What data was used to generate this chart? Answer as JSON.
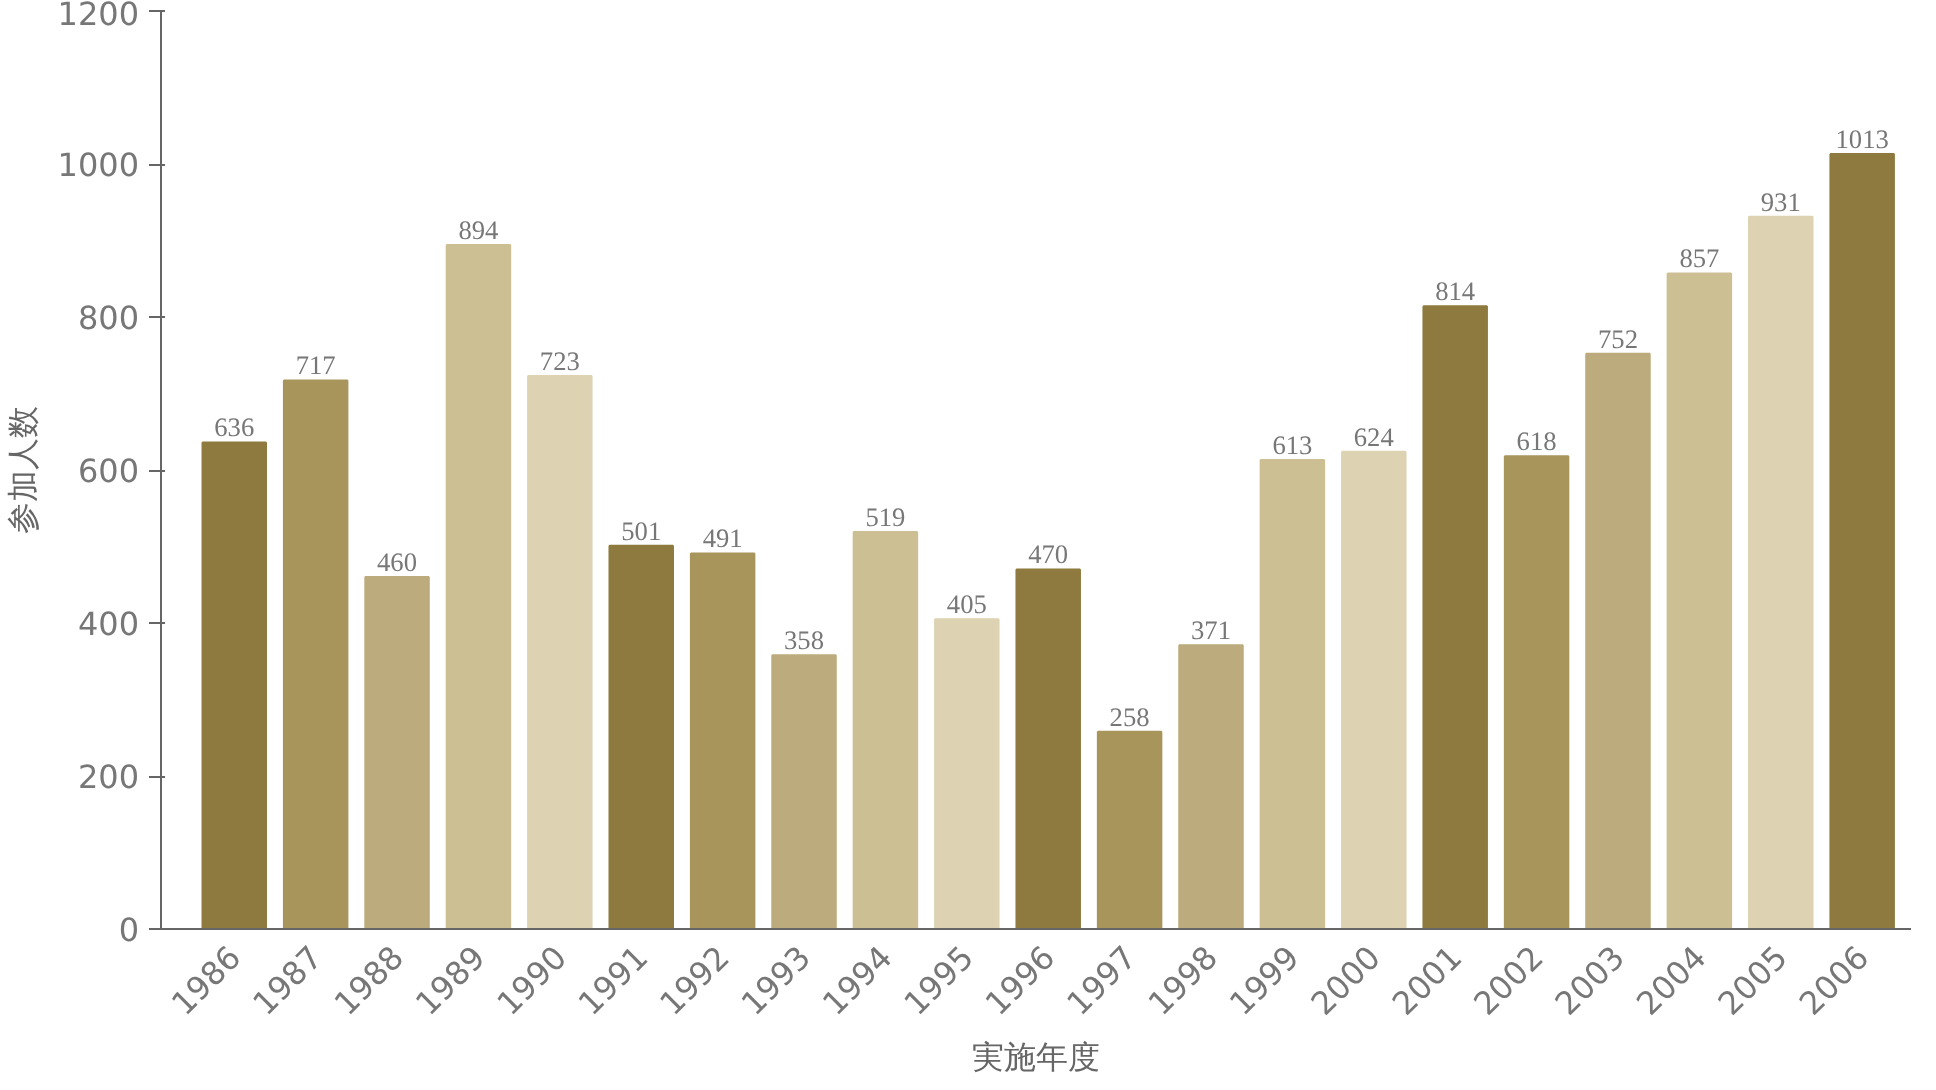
{
  "chart_data": {
    "type": "bar",
    "categories": [
      "1986",
      "1987",
      "1988",
      "1989",
      "1990",
      "1991",
      "1992",
      "1993",
      "1994",
      "1995",
      "1996",
      "1997",
      "1998",
      "1999",
      "2000",
      "2001",
      "2002",
      "2003",
      "2004",
      "2005",
      "2006"
    ],
    "values": [
      636,
      717,
      460,
      894,
      723,
      501,
      491,
      358,
      519,
      405,
      470,
      258,
      371,
      613,
      624,
      814,
      618,
      752,
      857,
      931,
      1013
    ],
    "colors": [
      "#8e7a3e",
      "#a8955c",
      "#bcab7c",
      "#cdbf94",
      "#ddd3b3",
      "#8e7a3e",
      "#a8955c",
      "#bcab7c",
      "#cdbf94",
      "#ddd3b3",
      "#8e7a3e",
      "#a8955c",
      "#bcab7c",
      "#cdbf94",
      "#ddd3b3",
      "#8e7a3e",
      "#a8955c",
      "#bcab7c",
      "#cdbf94",
      "#ddd3b3",
      "#8e7a3e"
    ],
    "ylim": [
      0,
      1200
    ],
    "yticks": [
      0,
      200,
      400,
      600,
      800,
      1000,
      1200
    ],
    "xlabel": "実施年度",
    "ylabel": "参加人数",
    "data_labels": true,
    "grid": false
  }
}
